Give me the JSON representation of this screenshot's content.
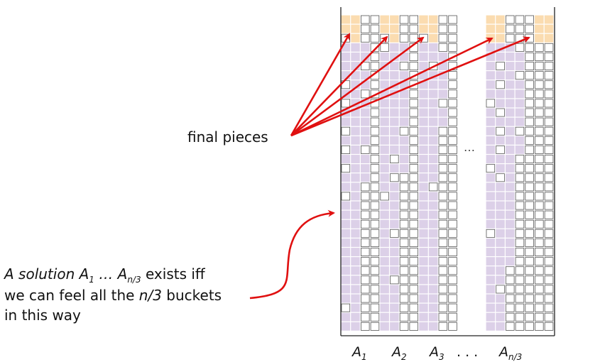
{
  "labels": {
    "final_pieces": "final pieces",
    "caption_line1_prefix": "A solution A",
    "caption_line1_sub1": "1",
    "caption_line1_mid": " … A",
    "caption_line1_sub2": "n/3",
    "caption_line1_suffix": " exists iff",
    "caption_line2_prefix": "we can feel all the ",
    "caption_line2_italic": "n/3",
    "caption_line2_suffix": " buckets",
    "caption_line3": "in this way",
    "middle_ellipsis": "…"
  },
  "columns": [
    {
      "base": "A",
      "sub": "1"
    },
    {
      "base": "A",
      "sub": "2"
    },
    {
      "base": "A",
      "sub": "3"
    },
    {
      "base": "A",
      "sub": "n/3"
    }
  ],
  "axis_ellipsis": ". . .",
  "colors": {
    "purple": "#dcd0e8",
    "orange": "#fbdcb0",
    "cell_border": "#555555",
    "frame": "#222222",
    "arrow": "#e01010"
  }
}
